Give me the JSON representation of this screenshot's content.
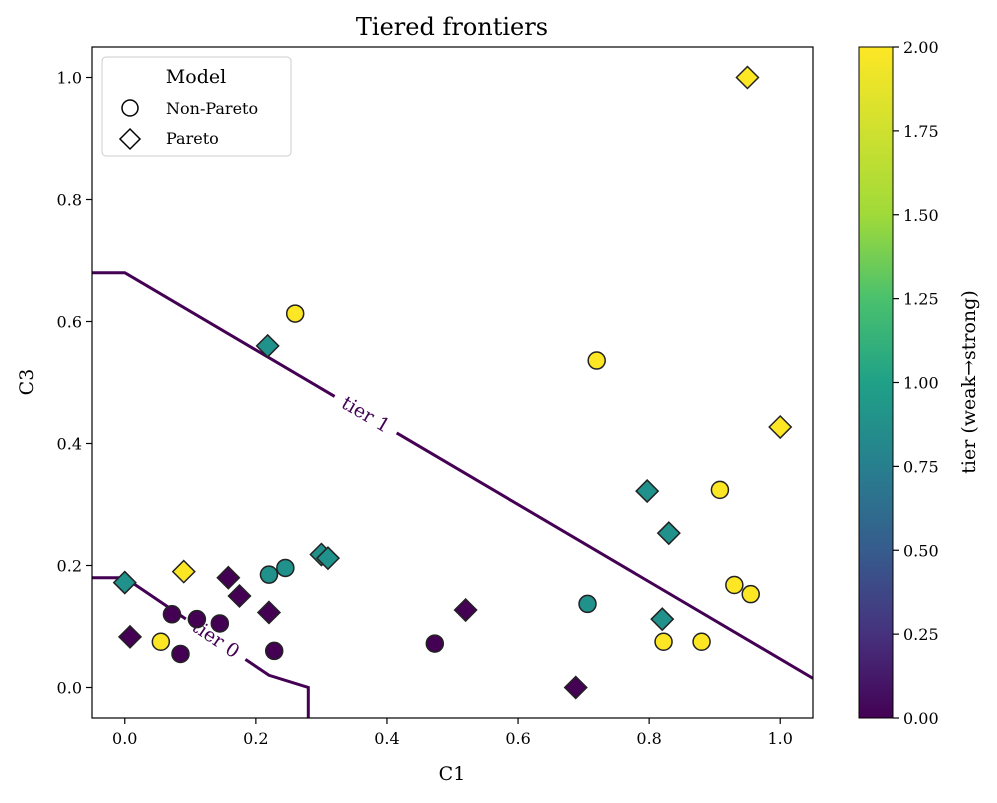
{
  "chart_data": {
    "type": "scatter",
    "title": "Tiered frontiers",
    "xlabel": "C1",
    "ylabel": "C3",
    "xlim": [
      -0.05,
      1.05
    ],
    "ylim": [
      -0.05,
      1.05
    ],
    "xticks": [
      0.0,
      0.2,
      0.4,
      0.6,
      0.8,
      1.0
    ],
    "yticks": [
      0.0,
      0.2,
      0.4,
      0.6,
      0.8,
      1.0
    ],
    "legend": {
      "title": "Model",
      "position": "top-left",
      "entries": [
        {
          "label": "Non-Pareto",
          "marker": "circle"
        },
        {
          "label": "Pareto",
          "marker": "diamond"
        }
      ]
    },
    "colorbar": {
      "label": "tier (weak→strong)",
      "min": 0.0,
      "max": 2.0,
      "ticks": [
        "0.00",
        "0.25",
        "0.50",
        "0.75",
        "1.00",
        "1.25",
        "1.50",
        "1.75",
        "2.00"
      ],
      "colors": {
        "tier0": "#440154",
        "tier1": "#21918c",
        "tier2": "#fde725"
      }
    },
    "frontiers": [
      {
        "label": "tier 0",
        "points": [
          [
            -0.05,
            0.18
          ],
          [
            0.0,
            0.18
          ],
          [
            0.22,
            0.02
          ],
          [
            0.28,
            0.0
          ],
          [
            0.28,
            -0.05
          ]
        ]
      },
      {
        "label": "tier 1",
        "points": [
          [
            -0.05,
            0.68
          ],
          [
            0.0,
            0.68
          ],
          [
            1.05,
            0.015
          ]
        ]
      }
    ],
    "points": [
      {
        "x": 0.0,
        "y": 0.172,
        "marker": "diamond",
        "tier": 1
      },
      {
        "x": 0.008,
        "y": 0.083,
        "marker": "diamond",
        "tier": 0
      },
      {
        "x": 0.055,
        "y": 0.075,
        "marker": "circle",
        "tier": 2
      },
      {
        "x": 0.072,
        "y": 0.12,
        "marker": "circle",
        "tier": 0
      },
      {
        "x": 0.085,
        "y": 0.055,
        "marker": "circle",
        "tier": 0
      },
      {
        "x": 0.09,
        "y": 0.19,
        "marker": "diamond",
        "tier": 2
      },
      {
        "x": 0.11,
        "y": 0.112,
        "marker": "circle",
        "tier": 0
      },
      {
        "x": 0.145,
        "y": 0.105,
        "marker": "circle",
        "tier": 0
      },
      {
        "x": 0.158,
        "y": 0.18,
        "marker": "diamond",
        "tier": 0
      },
      {
        "x": 0.175,
        "y": 0.15,
        "marker": "diamond",
        "tier": 0
      },
      {
        "x": 0.218,
        "y": 0.56,
        "marker": "diamond",
        "tier": 1
      },
      {
        "x": 0.22,
        "y": 0.185,
        "marker": "circle",
        "tier": 1
      },
      {
        "x": 0.22,
        "y": 0.123,
        "marker": "diamond",
        "tier": 0
      },
      {
        "x": 0.228,
        "y": 0.06,
        "marker": "circle",
        "tier": 0
      },
      {
        "x": 0.245,
        "y": 0.196,
        "marker": "circle",
        "tier": 1
      },
      {
        "x": 0.26,
        "y": 0.613,
        "marker": "circle",
        "tier": 2
      },
      {
        "x": 0.3,
        "y": 0.218,
        "marker": "diamond",
        "tier": 1
      },
      {
        "x": 0.31,
        "y": 0.212,
        "marker": "diamond",
        "tier": 1
      },
      {
        "x": 0.473,
        "y": 0.072,
        "marker": "circle",
        "tier": 0
      },
      {
        "x": 0.52,
        "y": 0.127,
        "marker": "diamond",
        "tier": 0
      },
      {
        "x": 0.688,
        "y": 0.0,
        "marker": "diamond",
        "tier": 0
      },
      {
        "x": 0.706,
        "y": 0.137,
        "marker": "circle",
        "tier": 1
      },
      {
        "x": 0.72,
        "y": 0.536,
        "marker": "circle",
        "tier": 2
      },
      {
        "x": 0.797,
        "y": 0.322,
        "marker": "diamond",
        "tier": 1
      },
      {
        "x": 0.82,
        "y": 0.112,
        "marker": "diamond",
        "tier": 1
      },
      {
        "x": 0.822,
        "y": 0.075,
        "marker": "circle",
        "tier": 2
      },
      {
        "x": 0.83,
        "y": 0.253,
        "marker": "diamond",
        "tier": 1
      },
      {
        "x": 0.88,
        "y": 0.075,
        "marker": "circle",
        "tier": 2
      },
      {
        "x": 0.908,
        "y": 0.324,
        "marker": "circle",
        "tier": 2
      },
      {
        "x": 0.93,
        "y": 0.168,
        "marker": "circle",
        "tier": 2
      },
      {
        "x": 0.95,
        "y": 1.0,
        "marker": "diamond",
        "tier": 2
      },
      {
        "x": 0.955,
        "y": 0.153,
        "marker": "circle",
        "tier": 2
      },
      {
        "x": 1.0,
        "y": 0.427,
        "marker": "diamond",
        "tier": 2
      }
    ]
  }
}
